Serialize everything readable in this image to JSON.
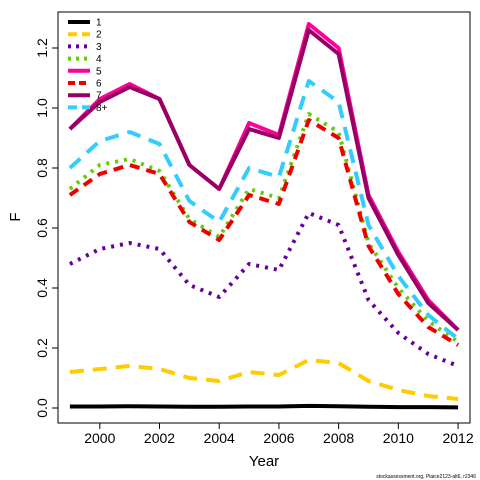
{
  "chart_data": {
    "type": "line",
    "xlabel": "Year",
    "ylabel": "F",
    "xlim": [
      1998.6,
      2012.4
    ],
    "ylim": [
      -0.05,
      1.32
    ],
    "x_ticks": [
      2000,
      2002,
      2004,
      2006,
      2008,
      2010,
      2012
    ],
    "y_ticks": [
      0.0,
      0.2,
      0.4,
      0.6,
      0.8,
      1.0,
      1.2
    ],
    "y_tick_labels": [
      "0.0",
      "0.2",
      "0.4",
      "0.6",
      "0.8",
      "1.0",
      "1.2"
    ],
    "grid": false,
    "legend_position": "top-left",
    "x": [
      1999,
      2000,
      2001,
      2002,
      2003,
      2004,
      2005,
      2006,
      2007,
      2008,
      2009,
      2010,
      2011,
      2012
    ],
    "series": [
      {
        "name": "1",
        "color": "#000000",
        "dash": "solid",
        "values": [
          0.005,
          0.005,
          0.006,
          0.005,
          0.004,
          0.004,
          0.005,
          0.005,
          0.007,
          0.006,
          0.004,
          0.003,
          0.003,
          0.002
        ]
      },
      {
        "name": "2",
        "color": "#FFCC00",
        "dash": "long",
        "values": [
          0.12,
          0.13,
          0.14,
          0.13,
          0.1,
          0.09,
          0.12,
          0.11,
          0.16,
          0.15,
          0.09,
          0.06,
          0.04,
          0.03
        ]
      },
      {
        "name": "3",
        "color": "#660099",
        "dash": "dot",
        "values": [
          0.48,
          0.53,
          0.55,
          0.53,
          0.41,
          0.37,
          0.48,
          0.46,
          0.65,
          0.61,
          0.36,
          0.25,
          0.18,
          0.14
        ]
      },
      {
        "name": "4",
        "color": "#66CC00",
        "dash": "dot",
        "values": [
          0.73,
          0.81,
          0.83,
          0.79,
          0.63,
          0.57,
          0.73,
          0.7,
          0.98,
          0.92,
          0.55,
          0.4,
          0.29,
          0.22
        ]
      },
      {
        "name": "5",
        "color": "#FF0099",
        "dash": "solid",
        "values": [
          0.93,
          1.03,
          1.08,
          1.03,
          0.81,
          0.73,
          0.95,
          0.91,
          1.28,
          1.2,
          0.71,
          0.52,
          0.36,
          0.26
        ]
      },
      {
        "name": "6",
        "color": "#EE0000",
        "dash": "dash",
        "values": [
          0.71,
          0.78,
          0.81,
          0.78,
          0.62,
          0.56,
          0.71,
          0.68,
          0.96,
          0.9,
          0.54,
          0.38,
          0.27,
          0.21
        ]
      },
      {
        "name": "7",
        "color": "#990066",
        "dash": "solid",
        "values": [
          0.93,
          1.02,
          1.07,
          1.03,
          0.81,
          0.73,
          0.93,
          0.9,
          1.26,
          1.18,
          0.7,
          0.51,
          0.35,
          0.26
        ]
      },
      {
        "name": "8+",
        "color": "#33CCFF",
        "dash": "long",
        "values": [
          0.8,
          0.89,
          0.92,
          0.88,
          0.69,
          0.62,
          0.8,
          0.77,
          1.09,
          1.02,
          0.61,
          0.44,
          0.31,
          0.23
        ]
      }
    ]
  },
  "credit": "stockassessment.org, Plaice2123-alt6, r2346"
}
